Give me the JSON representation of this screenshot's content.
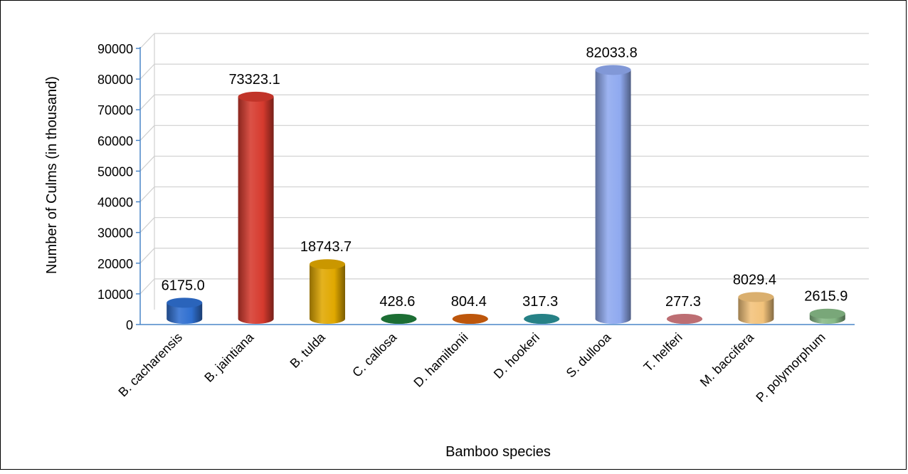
{
  "chart_data": {
    "type": "bar",
    "title": "",
    "xlabel": "Bamboo species",
    "ylabel": "Number of Culms (in thousand)",
    "ylim": [
      0,
      90000
    ],
    "yticks": [
      0,
      10000,
      20000,
      30000,
      40000,
      50000,
      60000,
      70000,
      80000,
      90000
    ],
    "grid": true,
    "categories": [
      "B. cacharensis",
      "B. jaintiana",
      "B. tulda",
      "C. callosa",
      "D. hamiltonii",
      "D. hookeri",
      "S. dullooa",
      "T. helferi",
      "M. baccifera",
      "P. polymorphum"
    ],
    "values": [
      6175.0,
      73323.1,
      18743.7,
      428.6,
      804.4,
      317.3,
      82033.8,
      277.3,
      8029.4,
      2615.9
    ],
    "value_labels": [
      "6175.0",
      "73323.1",
      "18743.7",
      "428.6",
      "804.4",
      "317.3",
      "82033.8",
      "277.3",
      "8029.4",
      "2615.9"
    ],
    "colors": [
      "#2f6fd0",
      "#d63a2e",
      "#e0a800",
      "#1f7a3a",
      "#d2600c",
      "#2a8f95",
      "#8fa9ef",
      "#d27a80",
      "#f2c27a",
      "#86b986"
    ]
  }
}
